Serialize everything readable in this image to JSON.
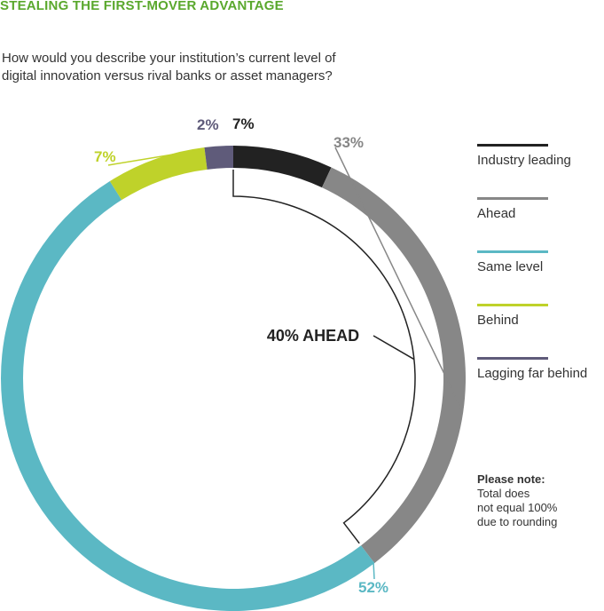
{
  "header": {
    "title": "STEALING THE FIRST-MOVER ADVANTAGE",
    "question": "How would you describe your institution’s current level of digital innovation versus rival banks or asset managers?"
  },
  "colors": {
    "title": "#5aa82d",
    "industry_leading": "#222222",
    "ahead": "#878787",
    "same_level": "#5bb8c4",
    "behind": "#bfd22a",
    "lagging": "#5f5b7a"
  },
  "chart_data": {
    "type": "pie",
    "variant": "donut",
    "start": "top",
    "direction": "clockwise",
    "categories": [
      "Industry leading",
      "Ahead",
      "Same level",
      "Behind",
      "Lagging far behind"
    ],
    "values": [
      7,
      33,
      52,
      7,
      2
    ],
    "value_labels": [
      "7%",
      "33%",
      "52%",
      "7%",
      "2%"
    ],
    "annotation": "40% AHEAD",
    "annotation_covers": [
      "Industry leading",
      "Ahead"
    ],
    "legend_position": "right"
  },
  "note": {
    "title": "Please note:",
    "body": [
      "Total does",
      "not equal 100%",
      "due to rounding"
    ]
  }
}
